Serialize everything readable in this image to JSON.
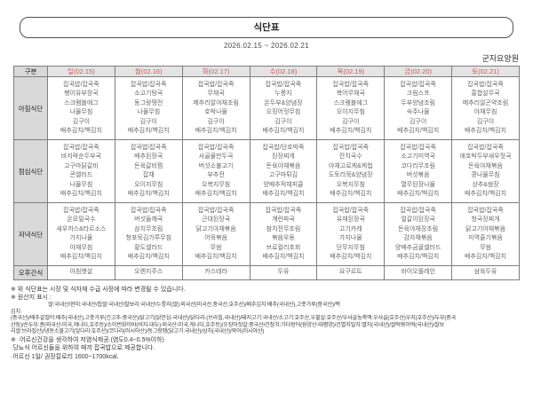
{
  "title": "식단표",
  "date_range": "2026.02.15 ~ 2026.02.21",
  "facility": "군자요양원",
  "colors": {
    "day_header_text": "#c85e5a",
    "header_bg": "#e4e4e4",
    "label_bg": "#d9d9d9",
    "border": "#7d7d7d",
    "cell_text": "#666666"
  },
  "table": {
    "corner_label": "구분",
    "days": [
      "일(02.15)",
      "월(02.16)",
      "화(02.17)",
      "수(02.18)",
      "목(02.19)",
      "금(02.20)",
      "토(02.21)"
    ],
    "rows": [
      {
        "label": "아침식단",
        "type": "meal",
        "cells": [
          [
            "잡곡밥/잡곡죽",
            "팽이유부장국",
            "스크램블에그",
            "나물무침",
            "김구이",
            "배추김치/백김치"
          ],
          [
            "잡곡밥/잡곡죽",
            "소고기탕국",
            "동그랑땡전",
            "나물무침",
            "김구이",
            "배추김치/백김치"
          ],
          [
            "잡곡밥/잡곡죽",
            "무채국",
            "메추리알야채조림",
            "호박나물",
            "김구이",
            "배추김치/백김치"
          ],
          [
            "잡곡밥/잡곡죽",
            "누룽지",
            "온두부&양념장",
            "오징어젓무침",
            "김구이",
            "배추김치/백김치"
          ],
          [
            "잡곡밥/잡곡죽",
            "북어무채국",
            "스크램블에그",
            "오이지무침",
            "김구이",
            "배추김치/백김치"
          ],
          [
            "잡곡밥/잡곡죽",
            "크림스프",
            "두부양념조림",
            "숙주나물",
            "김구이",
            "배추김치/백김치"
          ],
          [
            "잡곡밥/잡곡죽",
            "홍합살무국",
            "메추리알곤약조림",
            "야채무침",
            "김구이",
            "배추김치/백김치"
          ]
        ]
      },
      {
        "label": "점심식단",
        "type": "meal",
        "cells": [
          [
            "잡곡밥/잡곡죽",
            "바지락순두부국",
            "고구마닭갈비",
            "콘샐러드",
            "나물무침",
            "배추김치/백김치"
          ],
          [
            "잡곡밥/잡곡죽",
            "배추된장국",
            "돈육갈비찜",
            "잡채",
            "오이지무침",
            "배추김치/백김치"
          ],
          [
            "잡곡밥/잡곡죽",
            "사골물만두국",
            "버섯소불고기",
            "부추전",
            "오복지무침",
            "배추김치/백김치"
          ],
          [
            "잡곡밥/단호박죽",
            "된장찌개",
            "돈육야채볶음",
            "고구마튀김",
            "양배추적채피클",
            "배추김치/백김치"
          ],
          [
            "잡곡밥/잡곡죽",
            "잔치국수",
            "야채고로케&케첩",
            "도토리묵&양념장",
            "오복지무침",
            "배추김치/백김치"
          ],
          [
            "잡곡밥/잡곡죽",
            "소고기미역국",
            "코다리무조림",
            "버섯볶음",
            "열무된장나물",
            "배추김치/백김치"
          ],
          [
            "잡곡밥/잡곡죽",
            "애호박두부새우젓국",
            "돈육야채볶음",
            "콩나물무침",
            "상추&쌈장",
            "배추김치/백김치"
          ]
        ]
      },
      {
        "label": "저녁식단",
        "type": "meal",
        "cells": [
          [
            "잡곡밥/잡곡죽",
            "온모밀국수",
            "새우까스&타르소스",
            "가지나물",
            "야채무침",
            "배추김치/백김치"
          ],
          [
            "잡곡밥/잡곡죽",
            "버섯들깨국",
            "삼치무조림",
            "청포묵김가루무침",
            "황도샐러드",
            "배추김치/백김치"
          ],
          [
            "잡곡밥/잡곡죽",
            "근대된장국",
            "닭고기야채볶음",
            "어묵볶음",
            "무쌈",
            "배추김치/백김치"
          ],
          [
            "잡곡밥/잡곡죽",
            "계란파국",
            "참치전무조림",
            "볶음우동",
            "브로컬리초회",
            "배추김치/백김치"
          ],
          [
            "잡곡밥/잡곡죽",
            "유채된장국",
            "고기카레",
            "가지나물",
            "단무지무침",
            "배추김치/백김치"
          ],
          [
            "잡곡밥/잡곡죽",
            "얼갈이된장국",
            "돈육야채장조림",
            "감자채볶음",
            "양배추금귤샐러드",
            "배추김치/백김치"
          ],
          [
            "잡곡밥/잡곡죽",
            "청국장찌개",
            "닭고기야채볶음",
            "미역줄기볶음",
            "무쌈",
            "배추김치/백김치"
          ]
        ]
      },
      {
        "label": "오후간식",
        "type": "snack",
        "cells": [
          [
            "아침햇살"
          ],
          [
            "오렌지주스"
          ],
          [
            "카스테라"
          ],
          [
            "두유"
          ],
          [
            "요구르트"
          ],
          [
            "바이오플레인"
          ],
          [
            "삼육두유"
          ]
        ]
      }
    ]
  },
  "notes": {
    "change_notice": "※ 위 식단표는 시장 및 식자재 수급 사정에 따라 변경될 수 있습니다.",
    "origin_title": "※ 원산지 표시 :",
    "origin_lines": [
      "쌀:국내산/현미:국내산/찹쌀:국내산/찰보리:국내산/누룽지(쌀):외국산(미국산,중국산,호주산)/배추김치:배추(국내산),고춧가루(중국산)/백",
      "김치",
      "(중국산)/배추겉절이:배추(국내산),고춧가루(건고추-중국산)/닭고기(닭안심-국내산)/닭다리-(브라질,국내산)/돼지고기:국내산/소고기:호주산,우불살:호주산/우사골농축액:우사골(호주산)우지(호주산)/두부(중국",
      "산둥)/순두부:콩(외국산-미국,캐나다,호주등)/소이번화이바(비지-대두):외국산-미국,캐나다,호주등)/오징어젓갈:중국산/건참치:가다랑어(원양산-태평양)/건멸치밀치:멸치(국내산)/쌀떡볶이떡(국내산)/찰보",
      "리쌀:브라질산)/냉동소불고기(잎다리:호주산)/코다리(러시아산)/동그랑땡(닭고기:국내산)/삼치(국내산)/북어(러시아산)"
    ],
    "low_salt": "※ ·어르신건강을 생각하여 저염식제공.(염도0.4~0.5%이하)",
    "diabetic": "·당뇨식 어르신들을 위하여 매끼 잡곡밥으로 제공합니다.",
    "calories": "·어르신 1일/ 권장칼로리 1600~1700kcal."
  }
}
